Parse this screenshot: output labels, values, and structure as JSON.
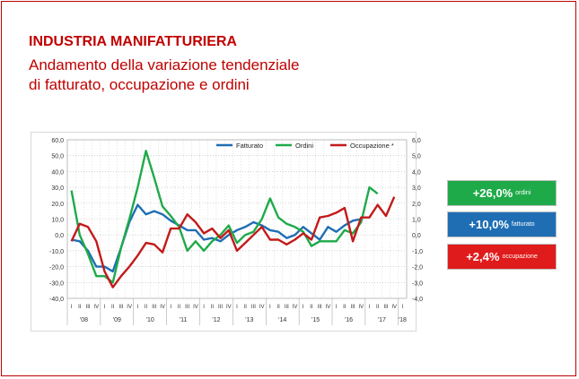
{
  "header": {
    "title": "INDUSTRIA MANIFATTURIERA",
    "subtitle_line1": "Andamento della variazione tendenziale",
    "subtitle_line2": "di fatturato, occupazione e ordini"
  },
  "kpis": [
    {
      "value": "+26,0%",
      "label": "ordini",
      "color": "#1faa4a"
    },
    {
      "value": "+10,0%",
      "label": "fatturato",
      "color": "#1f6eb4"
    },
    {
      "value": "+2,4%",
      "label": "occupazione",
      "color": "#e01b1b"
    }
  ],
  "chart_data": {
    "type": "line",
    "quarter_labels": [
      "I",
      "II",
      "III",
      "IV"
    ],
    "years": [
      "'08",
      "'09",
      "'10",
      "'11",
      "'12",
      "'13",
      "'14",
      "'15",
      "'16",
      "'17",
      "'18"
    ],
    "left_axis": {
      "ylim": [
        -40,
        60
      ],
      "ticks": [
        "60,0",
        "50,0",
        "40,0",
        "30,0",
        "20,0",
        "10,0",
        "0,0",
        "-10,0",
        "-20,0",
        "-30,0",
        "-40,0"
      ]
    },
    "right_axis": {
      "ylim": [
        -4,
        6
      ],
      "ticks": [
        "6,0",
        "5,0",
        "4,0",
        "3,0",
        "2,0",
        "1,0",
        "0,0",
        "-1,0",
        "-2,0",
        "-3,0",
        "-4,0"
      ]
    },
    "grid": true,
    "legend_position": "top-right",
    "series": [
      {
        "name": "Fatturato",
        "axis": "left",
        "color": "#1f6eb4",
        "values": [
          -3,
          -4,
          -10,
          -20,
          -20,
          -23,
          -8,
          8,
          19,
          13,
          15,
          13,
          9,
          6,
          3,
          3,
          -3,
          -2,
          -4,
          0,
          3,
          5,
          8,
          6,
          3,
          2,
          -2,
          0,
          5,
          1,
          -3,
          5,
          2,
          6,
          9,
          10
        ]
      },
      {
        "name": "Ordini",
        "axis": "left",
        "color": "#1faa4a",
        "values": [
          28,
          0,
          -12,
          -26,
          -26,
          -30,
          -8,
          10,
          30,
          53,
          36,
          18,
          12,
          5,
          -10,
          -4,
          -10,
          -4,
          0,
          6,
          -5,
          0,
          2,
          10,
          23,
          11,
          7,
          5,
          2,
          -7,
          -4,
          -4,
          -4,
          3,
          1,
          8,
          30,
          26
        ]
      },
      {
        "name": "Occupazione *",
        "axis": "right",
        "color": "#c21a1a",
        "values": [
          -0.4,
          0.7,
          0.5,
          -0.4,
          -2.3,
          -3.3,
          -2.6,
          -2.0,
          -1.3,
          -0.5,
          -0.6,
          -1.1,
          0.4,
          0.4,
          1.3,
          0.8,
          0.1,
          0.4,
          -0.2,
          0.3,
          -1.0,
          -0.5,
          0.0,
          0.5,
          -0.3,
          -0.3,
          -0.6,
          -0.3,
          0.1,
          -0.3,
          1.1,
          1.2,
          1.4,
          1.7,
          -0.4,
          1.1,
          1.1,
          1.9,
          1.2,
          2.4
        ]
      }
    ]
  }
}
